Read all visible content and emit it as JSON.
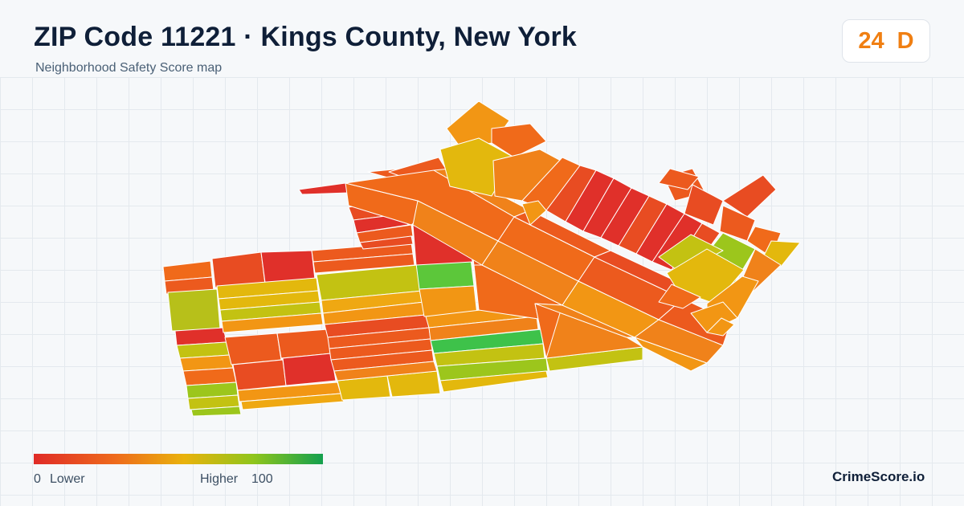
{
  "header": {
    "title": "ZIP Code 11221 · Kings County, New York",
    "subtitle": "Neighborhood Safety Score map"
  },
  "score_badge": {
    "score": "24",
    "grade": "D",
    "color": "#f07f12"
  },
  "legend": {
    "min_value": "0",
    "min_label": "Lower",
    "max_label": "Higher",
    "max_value": "100",
    "colors": [
      "#e02b27",
      "#ee6a1c",
      "#e9b20c",
      "#8fc51c",
      "#14a04e"
    ]
  },
  "brand": "CrimeScore.io",
  "palette": {
    "red": "#e0302a",
    "red_orange": "#e84c22",
    "orange_red": "#ec5a1e",
    "orange": "#f06a1a",
    "orange_light": "#f0821a",
    "amber": "#f29614",
    "amber_yellow": "#efa812",
    "yellow": "#e3b80d",
    "yellow_green": "#c3c212",
    "olive": "#b7c01a",
    "lime": "#9cc61c",
    "green": "#5cc73a",
    "green_strong": "#3ec24a"
  }
}
